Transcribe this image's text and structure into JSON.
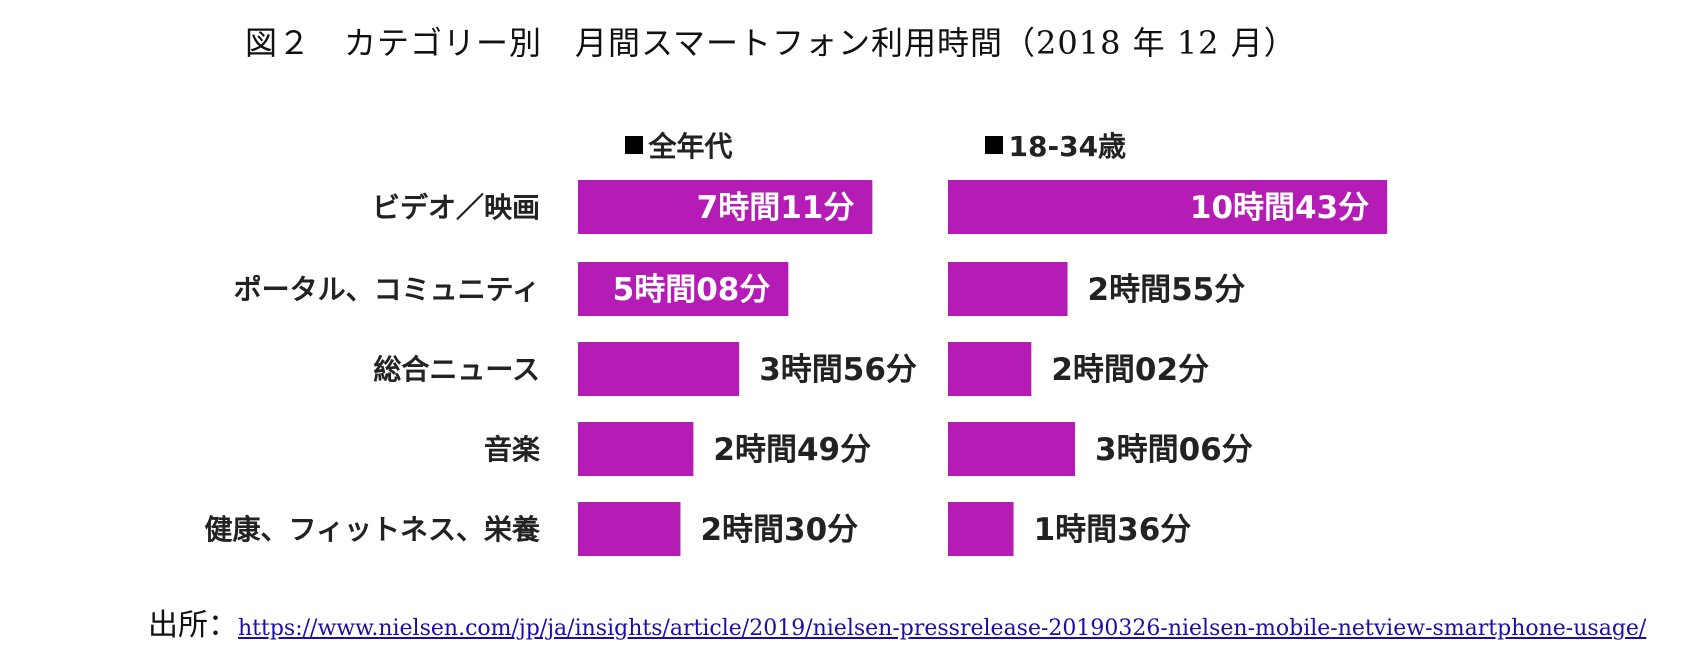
{
  "title": "図２　カテゴリー別　月間スマートフォン利用時間（2018 年 12 月）",
  "source": {
    "label": "出所：",
    "url": "https://www.nielsen.com/jp/ja/insights/article/2019/nielsen-pressrelease-20190326-nielsen-mobile-netview-smartphone-usage/"
  },
  "colors": {
    "bar": "#B51CB5"
  },
  "chart_data": {
    "type": "bar",
    "orientation": "horizontal",
    "title": "図２　カテゴリー別　月間スマートフォン利用時間（2018 年 12 月）",
    "categories": [
      "ビデオ／映画",
      "ポータル、コミュニティ",
      "総合ニュース",
      "音楽",
      "健康、フィットネス、栄養"
    ],
    "unit": "minutes",
    "series": [
      {
        "name": "全年代",
        "values": [
          431,
          308,
          236,
          169,
          150
        ],
        "labels": [
          "7時間11分",
          "5時間08分",
          "3時間56分",
          "2時間49分",
          "2時間30分"
        ],
        "label_inside": [
          true,
          true,
          false,
          false,
          false
        ]
      },
      {
        "name": "18-34歳",
        "values": [
          643,
          175,
          122,
          186,
          96
        ],
        "labels": [
          "10時間43分",
          "2時間55分",
          "2時間02分",
          "3時間06分",
          "1時間36分"
        ],
        "label_inside": [
          true,
          false,
          false,
          false,
          false
        ]
      }
    ],
    "legend_position": "top",
    "grid": false
  }
}
